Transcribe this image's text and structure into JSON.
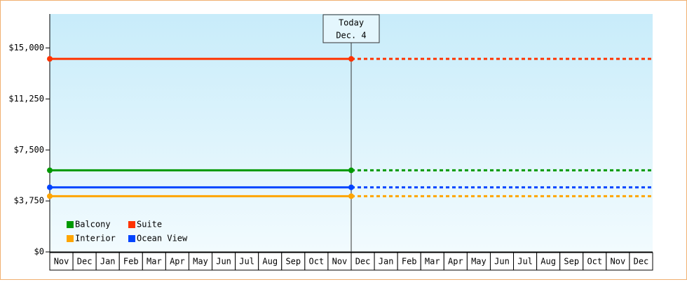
{
  "chart_data": {
    "type": "line",
    "categories": [
      "Nov",
      "Dec",
      "Jan",
      "Feb",
      "Mar",
      "Apr",
      "May",
      "Jun",
      "Jul",
      "Aug",
      "Sep",
      "Oct",
      "Nov",
      "Dec",
      "Jan",
      "Feb",
      "Mar",
      "Apr",
      "May",
      "Jun",
      "Jul",
      "Aug",
      "Sep",
      "Oct",
      "Nov",
      "Dec"
    ],
    "series": [
      {
        "name": "Suite",
        "color": "#ff3300",
        "values": [
          14200,
          14200,
          14200,
          14200,
          14200,
          14200,
          14200,
          14200,
          14200,
          14200,
          14200,
          14200,
          14200,
          14200,
          null,
          null,
          null,
          null,
          null,
          null,
          null,
          null,
          null,
          null,
          null,
          null
        ]
      },
      {
        "name": "Balcony",
        "color": "#009900",
        "values": [
          6000,
          6000,
          6000,
          6000,
          6000,
          6000,
          6000,
          6000,
          6000,
          6000,
          6000,
          6000,
          6000,
          6000,
          null,
          null,
          null,
          null,
          null,
          null,
          null,
          null,
          null,
          null,
          null,
          null
        ]
      },
      {
        "name": "Ocean View",
        "color": "#0044ff",
        "values": [
          4750,
          4750,
          4750,
          4750,
          4750,
          4750,
          4750,
          4750,
          4750,
          4750,
          4750,
          4750,
          4750,
          4750,
          null,
          null,
          null,
          null,
          null,
          null,
          null,
          null,
          null,
          null,
          null,
          null
        ]
      },
      {
        "name": "Interior",
        "color": "#ffa500",
        "values": [
          4100,
          4100,
          4100,
          4100,
          4100,
          4100,
          4100,
          4100,
          4100,
          4100,
          4100,
          4100,
          4100,
          4100,
          null,
          null,
          null,
          null,
          null,
          null,
          null,
          null,
          null,
          null,
          null,
          null
        ]
      }
    ],
    "ylim": [
      0,
      17500
    ],
    "yticks": [
      {
        "value": 0,
        "label": "$0"
      },
      {
        "value": 3750,
        "label": "$3,750"
      },
      {
        "value": 7500,
        "label": "$7,500"
      },
      {
        "value": 11250,
        "label": "$11,250"
      },
      {
        "value": 15000,
        "label": "$15,000"
      }
    ],
    "annotation": [
      "Today",
      "Dec. 4"
    ],
    "legend_order": [
      "Balcony",
      "Suite",
      "Interior",
      "Ocean View"
    ]
  }
}
